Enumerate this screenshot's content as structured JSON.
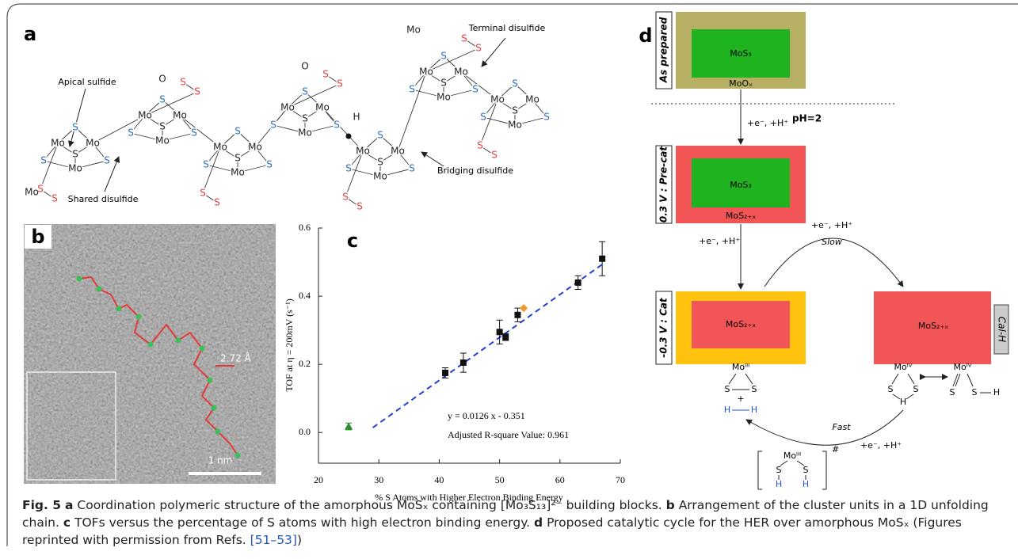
{
  "figure": {
    "panel_a": {
      "label": "a",
      "annotations": [
        "Apical sulfide",
        "Shared disulfide",
        "Bridging disulfide",
        "Terminal disulfide"
      ],
      "clusters": [
        {
          "atoms": [
            "Mo",
            "Mo",
            "Mo",
            "S",
            "S",
            "S",
            "S",
            "S",
            "S"
          ]
        },
        {
          "atoms": [
            "Mo",
            "Mo",
            "Mo",
            "S",
            "S",
            "S",
            "S",
            "S",
            "S"
          ]
        },
        {
          "atoms": [
            "Mo",
            "Mo",
            "Mo",
            "S",
            "S",
            "S",
            "S",
            "S",
            "S"
          ]
        },
        {
          "atoms": [
            "Mo",
            "Mo",
            "Mo",
            "S",
            "S",
            "S",
            "S",
            "S",
            "S"
          ]
        },
        {
          "atoms": [
            "Mo",
            "Mo",
            "Mo",
            "S",
            "S",
            "S",
            "S",
            "S",
            "S"
          ]
        },
        {
          "atoms": [
            "Mo",
            "Mo",
            "Mo",
            "S",
            "S",
            "S",
            "S",
            "S",
            "S"
          ]
        },
        {
          "atoms": [
            "Mo",
            "Mo",
            "Mo",
            "S",
            "S",
            "S",
            "S",
            "S",
            "S"
          ]
        }
      ],
      "end_atoms": [
        "Mo",
        "Mo"
      ],
      "oxo": [
        "O",
        "O"
      ],
      "hydrogen": "H"
    },
    "panel_b": {
      "label": "b",
      "spacing": "2.72 Å",
      "scale": "1 nm"
    },
    "panel_d": {
      "label": "d",
      "states": [
        {
          "tag": "As prepared",
          "core": "MoS₃",
          "shell": "MoOₓ"
        },
        {
          "tag": "0.3 V : Pre-cat",
          "core": "MoS₃",
          "shell": "MoS₂₊ₓ"
        },
        {
          "tag": "-0.3 V : Cat",
          "core": "MoS₂₊ₓ"
        },
        {
          "tag": "Cal-H",
          "core": "MoS₂₊ₓ"
        }
      ],
      "ph": "pH=2",
      "steps": {
        "reduction_1": "+e⁻, +H⁺",
        "reduction_2": "+e⁻, +H⁺",
        "slow_reagents": "+e⁻, +H⁺",
        "slow": "Slow",
        "fast": "Fast",
        "fast_reagents": "+e⁻, +H⁺"
      },
      "sites": {
        "cat": [
          "Moᴵᴵᴵ",
          "S",
          "S",
          "+",
          "H",
          "H"
        ],
        "hydride": [
          "Moᴵⱽ",
          "S",
          "S",
          "H"
        ],
        "thiol": [
          "Moᴵⱽ",
          "S",
          "S",
          "H"
        ],
        "transition": [
          "Moᴵᴵᴵ",
          "S",
          "S",
          "H",
          "H",
          "#"
        ]
      }
    }
  },
  "chart_data": {
    "type": "scatter",
    "label": "c",
    "xlabel": "% S Atoms with Higher Electron Binding Energy",
    "ylabel": "TOF at η = 200mV (s⁻¹)",
    "xlim": [
      20,
      70
    ],
    "xticks": [
      20,
      30,
      40,
      50,
      60,
      70
    ],
    "ylim": [
      -0.09,
      0.6
    ],
    "yticks": [
      {
        "value": 0,
        "label": "0.0"
      },
      {
        "value": 0.2,
        "label": "0.2"
      },
      {
        "value": 0.4,
        "label": "0.4"
      },
      {
        "value": 0.6,
        "label": "0.6"
      }
    ],
    "series": [
      {
        "marker": "square",
        "color": "#111111",
        "x": [
          41,
          44,
          50,
          51,
          53,
          63,
          67
        ],
        "values": [
          0.175,
          0.205,
          0.295,
          0.28,
          0.345,
          0.44,
          0.51
        ],
        "errors": [
          0.015,
          0.028,
          0.035,
          0.01,
          0.02,
          0.02,
          0.05
        ]
      },
      {
        "marker": "triangle",
        "color": "#2e8b2e",
        "x": [
          25
        ],
        "values": [
          0.018
        ],
        "errors": [
          0.01
        ]
      },
      {
        "marker": "diamond",
        "color": "#f0962c",
        "x": [
          54
        ],
        "values": [
          0.365
        ]
      }
    ],
    "fit": {
      "color": "#1f3fd8",
      "x": [
        29,
        67
      ],
      "values": [
        0.0144,
        0.4932
      ]
    },
    "annotations": [
      "y = 0.0126 x - 0.351",
      "Adjusted R-square Value: 0.961"
    ]
  },
  "caption": {
    "label": "Fig. 5",
    "items": [
      {
        "key": "a",
        "text": "Coordination polymeric structure of the amorphous MoSₓ containing [Mo₃S₁₃]²⁻ building blocks."
      },
      {
        "key": "b",
        "text": "Arrangement of the cluster units in a 1D unfolding chain."
      },
      {
        "key": "c",
        "text": "TOFs versus the percentage of S atoms with high electron binding energy."
      },
      {
        "key": "d",
        "text": "Proposed catalytic cycle for the HER over amorphous MoSₓ (Figures reprinted with permission from Refs. "
      }
    ],
    "ref": "[51–53]",
    "end": ")"
  }
}
